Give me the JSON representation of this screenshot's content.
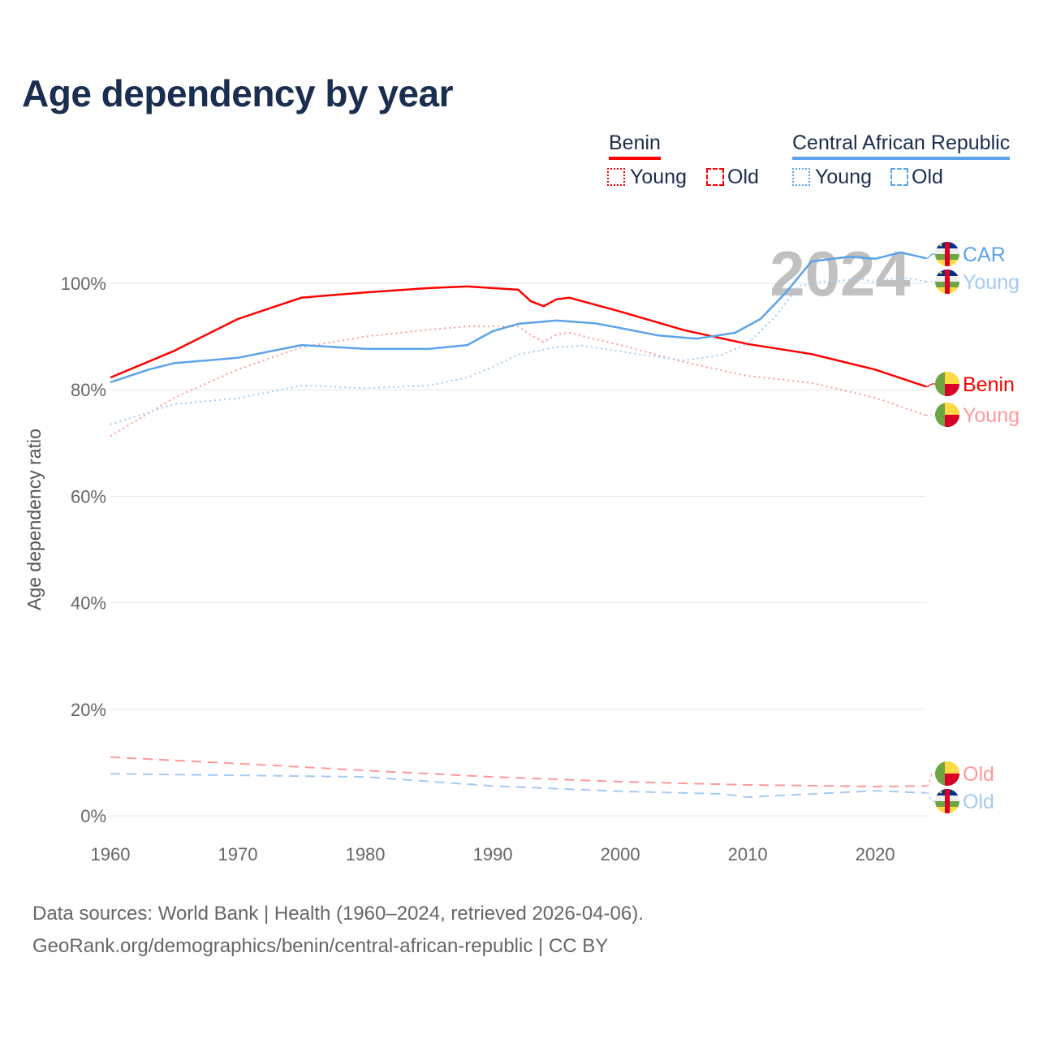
{
  "title": "Age dependency by year",
  "legend": {
    "groups": [
      {
        "name": "Benin",
        "color": "#ff0000",
        "items": [
          "Young",
          "Old"
        ]
      },
      {
        "name": "Central African Republic",
        "color": "#5ba3eb",
        "items": [
          "Young",
          "Old"
        ]
      }
    ]
  },
  "year_watermark": "2024",
  "footer": {
    "line1": "Data sources: World Bank | Health (1960–2024, retrieved 2026-04-06).",
    "line2": "GeoRank.org/demographics/benin/central-african-republic | CC BY"
  },
  "chart_data": {
    "type": "line",
    "title": "Age dependency by year",
    "xlabel": "",
    "ylabel": "Age dependency ratio",
    "xlim": [
      1960,
      2024
    ],
    "ylim": [
      0,
      105
    ],
    "x_ticks": [
      "1960",
      "1970",
      "1980",
      "1990",
      "2000",
      "2010",
      "2020"
    ],
    "y_ticks": [
      "0%",
      "20%",
      "40%",
      "60%",
      "80%",
      "100%"
    ],
    "grid": true,
    "series": [
      {
        "name": "Benin",
        "label": "Benin",
        "country": "Benin",
        "color": "#ff0000",
        "style": "solid",
        "points": [
          [
            1960,
            82.3
          ],
          [
            1965,
            87.3
          ],
          [
            1970,
            93.3
          ],
          [
            1975,
            97.3
          ],
          [
            1980,
            98.3
          ],
          [
            1985,
            99.1
          ],
          [
            1988,
            99.4
          ],
          [
            1992,
            98.8
          ],
          [
            1993,
            96.6
          ],
          [
            1994,
            95.7
          ],
          [
            1995,
            97.0
          ],
          [
            1996,
            97.3
          ],
          [
            2000,
            94.7
          ],
          [
            2005,
            91.2
          ],
          [
            2010,
            88.6
          ],
          [
            2015,
            86.7
          ],
          [
            2020,
            83.8
          ],
          [
            2024,
            80.6
          ]
        ]
      },
      {
        "name": "Benin Young",
        "label": "Young",
        "country": "Benin",
        "color": "#ff9999",
        "style": "dotted",
        "points": [
          [
            1960,
            71.3
          ],
          [
            1965,
            78.5
          ],
          [
            1970,
            83.8
          ],
          [
            1975,
            88.0
          ],
          [
            1980,
            90.0
          ],
          [
            1985,
            91.3
          ],
          [
            1988,
            91.9
          ],
          [
            1992,
            91.9
          ],
          [
            1993,
            90.2
          ],
          [
            1994,
            89.0
          ],
          [
            1995,
            90.4
          ],
          [
            1996,
            90.7
          ],
          [
            2000,
            88.4
          ],
          [
            2005,
            85.2
          ],
          [
            2010,
            82.6
          ],
          [
            2015,
            81.3
          ],
          [
            2020,
            78.5
          ],
          [
            2024,
            75.2
          ]
        ]
      },
      {
        "name": "Benin Old",
        "label": "Old",
        "country": "Benin",
        "color": "#ff9999",
        "style": "dashed",
        "points": [
          [
            1960,
            11.0
          ],
          [
            1970,
            9.8
          ],
          [
            1980,
            8.5
          ],
          [
            1990,
            7.3
          ],
          [
            2000,
            6.4
          ],
          [
            2010,
            5.8
          ],
          [
            2020,
            5.5
          ],
          [
            2024,
            5.6
          ]
        ]
      },
      {
        "name": "CAR",
        "label": "CAR",
        "country": "Central African Republic",
        "color": "#5ba3eb",
        "style": "solid",
        "points": [
          [
            1960,
            81.4
          ],
          [
            1963,
            83.8
          ],
          [
            1965,
            85.0
          ],
          [
            1970,
            86.0
          ],
          [
            1975,
            88.4
          ],
          [
            1980,
            87.7
          ],
          [
            1985,
            87.7
          ],
          [
            1988,
            88.4
          ],
          [
            1990,
            91.0
          ],
          [
            1992,
            92.4
          ],
          [
            1995,
            93.0
          ],
          [
            1998,
            92.5
          ],
          [
            2000,
            91.6
          ],
          [
            2003,
            90.2
          ],
          [
            2006,
            89.6
          ],
          [
            2009,
            90.7
          ],
          [
            2011,
            93.3
          ],
          [
            2013,
            98.3
          ],
          [
            2015,
            104.1
          ],
          [
            2018,
            105.0
          ],
          [
            2020,
            104.6
          ],
          [
            2022,
            105.8
          ],
          [
            2024,
            104.7
          ]
        ]
      },
      {
        "name": "CAR Young",
        "label": "Young",
        "country": "Central African Republic",
        "color": "#a3cbf3",
        "style": "dotted",
        "points": [
          [
            1960,
            73.5
          ],
          [
            1965,
            77.3
          ],
          [
            1970,
            78.4
          ],
          [
            1975,
            80.8
          ],
          [
            1980,
            80.3
          ],
          [
            1985,
            80.8
          ],
          [
            1988,
            82.3
          ],
          [
            1990,
            84.3
          ],
          [
            1992,
            86.6
          ],
          [
            1995,
            88.0
          ],
          [
            1997,
            88.3
          ],
          [
            2000,
            87.2
          ],
          [
            2005,
            85.5
          ],
          [
            2008,
            86.6
          ],
          [
            2010,
            88.7
          ],
          [
            2012,
            93.3
          ],
          [
            2014,
            99.5
          ],
          [
            2016,
            100.3
          ],
          [
            2019,
            100.8
          ],
          [
            2020,
            100.2
          ],
          [
            2022,
            101.2
          ],
          [
            2024,
            100.3
          ]
        ]
      },
      {
        "name": "CAR Old",
        "label": "Old",
        "country": "Central African Republic",
        "color": "#a3cbf3",
        "style": "dashed",
        "points": [
          [
            1960,
            7.9
          ],
          [
            1980,
            7.3
          ],
          [
            1990,
            5.6
          ],
          [
            2000,
            4.6
          ],
          [
            2008,
            4.1
          ],
          [
            2010,
            3.5
          ],
          [
            2015,
            4.1
          ],
          [
            2020,
            4.7
          ],
          [
            2024,
            4.3
          ]
        ]
      }
    ]
  }
}
